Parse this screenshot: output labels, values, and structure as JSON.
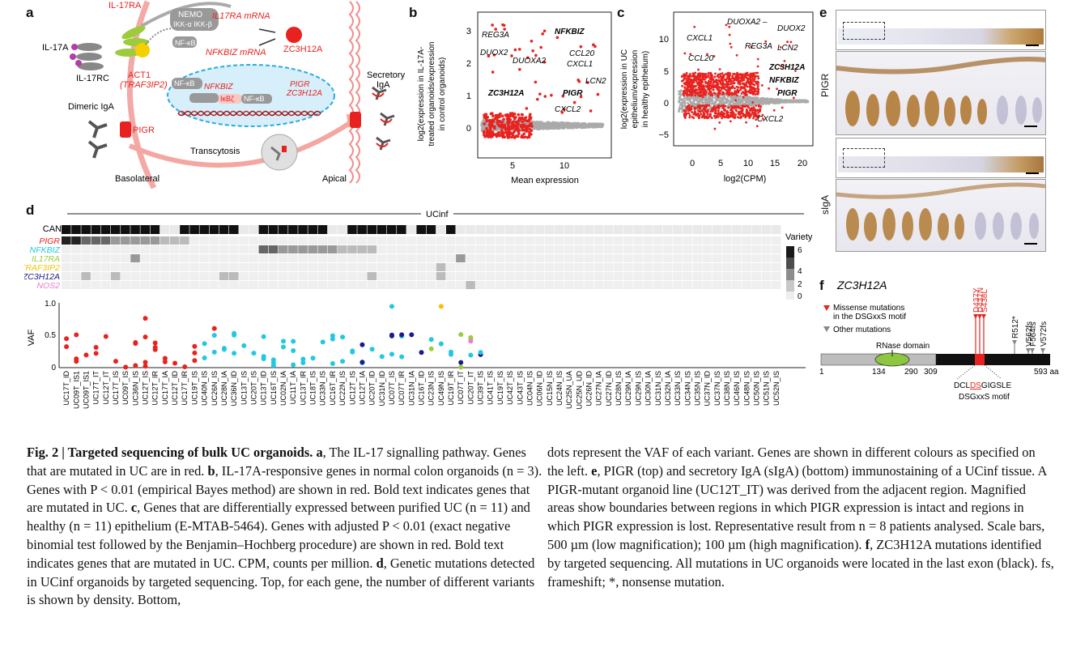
{
  "panel_letters": {
    "a": "a",
    "b": "b",
    "c": "c",
    "d": "d",
    "e": "e",
    "f": "f"
  },
  "panel_a": {
    "il17ra": "IL-17RA",
    "il17a": "IL-17A",
    "il17rc": "IL-17RC",
    "act1": "ACT1",
    "traf3ip2": "(TRAF3IP2)",
    "nemo": "NEMO",
    "ikk": "IKK-α IKK-β",
    "nfkb1": "NF-κB",
    "nfkb2": "NF-κB",
    "nfkb3": "NF-κB",
    "il17ra_mrna": "IL17RA mRNA",
    "nfkbiz_mrna": "NFKBIZ mRNA",
    "zc3h12a": "ZC3H12A",
    "nfkbiz": "NFKBIZ",
    "ikbz": "IκBζ",
    "pigr_g": "PIGR",
    "zc3h12a_g": "ZC3H12A",
    "dimeric": "Dimeric IgA",
    "pigr": "PIGR",
    "transcytosis": "Transcytosis",
    "basolateral": "Basolateral",
    "apical": "Apical",
    "secretory": "Secretory",
    "iga": "IgA"
  },
  "panel_b": {
    "ylabel": [
      "log2(expression in IL-17A-",
      "treated organoids/expression",
      "in control organoids)"
    ],
    "xlabel": "Mean expression",
    "yticks": [
      "0",
      "1",
      "2",
      "3"
    ],
    "xticks": [
      "5",
      "10"
    ],
    "genes": {
      "reg3a": "REG3A",
      "nfkbiz": "NFKBIZ",
      "duox2": "DUOX2",
      "duoxa2": "DUOXA2",
      "ccl20": "CCL20",
      "cxcl1": "CXCL1",
      "lcn2": "LCN2",
      "pigr": "PIGR",
      "zc3h12a": "ZC3H12A",
      "cxcl2": "CXCL2"
    }
  },
  "panel_c": {
    "ylabel": [
      "log2(expression in UC",
      "epithelium/expression",
      "in healthy epithelium)"
    ],
    "xlabel": "log2(CPM)",
    "yticks": [
      "10",
      "5",
      "0",
      "−5"
    ],
    "xticks": [
      "0",
      "5",
      "10",
      "15",
      "20"
    ],
    "genes": {
      "duoxa2": "DUOXA2 –",
      "duox2": "DUOX2",
      "cxcl1": "CXCL1",
      "reg3a": "REG3A",
      "lcn2": "LCN2",
      "ccl20": "CCL20",
      "zc3h12a": "ZC3H12A",
      "nfkbiz": "NFKBIZ",
      "pigr": "PIGR",
      "cxcl2": "CXCL2"
    }
  },
  "panel_d": {
    "ucinf": "UCinf",
    "can": "CAN",
    "genes": [
      "PIGR",
      "NFKBIZ",
      "IL17RA",
      "TRAF3IP2",
      "ZC3H12A",
      "NOS2"
    ],
    "gene_colors": [
      "#e8231f",
      "#22c8e0",
      "#9ccc3c",
      "#f5c000",
      "#1a1a8c",
      "#f07ad0"
    ],
    "variety_label": "Variety",
    "variety_ticks": [
      "6",
      "4",
      "2",
      "0"
    ],
    "vaf_label": "VAF",
    "vaf_ticks": [
      "1.0",
      "0.5",
      "0"
    ],
    "samples": [
      "UC17T_ID",
      "UC09T_IS1",
      "UC09T_IS1",
      "UC17T_IT",
      "UC12T_IT",
      "UC17T_IS",
      "UC09T_IS",
      "UC36N_IS",
      "UC12T_IS",
      "UC12T_IR",
      "UC17T_IA",
      "UC12T_ID",
      "UC17T_IR",
      "UC19T_IS",
      "UC40N_IS",
      "UC26N_IS",
      "UC28N_IA",
      "UC36N_ID",
      "UC13T_IS",
      "UC20T_IS",
      "UC13T_ID",
      "UC16T_IS",
      "UC02N_IA",
      "UC11T_IA",
      "UC13T_IR",
      "UC18T_IS",
      "UC33N_IS",
      "UC16T_IR",
      "UC22N_IS",
      "UC12T_IS",
      "UC12T_IA",
      "UC20T_ID",
      "UC31N_ID",
      "UC07T_IS",
      "UC07T_IR",
      "UC31N_IA",
      "UC16T_ID",
      "UC23N_IS",
      "UC49N_IS",
      "UC19T_IR",
      "UC07T_IT",
      "UC20T_IT",
      "UC39T_IS",
      "UC41T_IS",
      "UC19T_IS",
      "UC42T_IS",
      "UC43T_IS",
      "UC04N_IS",
      "UC06N_ID",
      "UC15N_IS",
      "UC24N_IS",
      "UC25N_UA",
      "UC25N_UD",
      "UC26N_ID",
      "UC27N_IA",
      "UC27N_ID",
      "UC28N_IS",
      "UC29N_IA",
      "UC29N_IS",
      "UC30N_IA",
      "UC31N_IS",
      "UC32N_IA",
      "UC33N_IS",
      "UC34N_IS",
      "UC35N_IS",
      "UC37N_ID",
      "UC37N_IS",
      "UC38N_IS",
      "UC46N_IS",
      "UC48N_IS",
      "UC50N_IS",
      "UC51N_IS",
      "UC52N_IS"
    ]
  },
  "panel_e": {
    "pigr": "PIGR",
    "siga": "sIgA"
  },
  "panel_f": {
    "title": "ZC3H12A",
    "legend_missense": "Missense mutations",
    "legend_missense2": "in the DSGxxS motif",
    "legend_other": "Other mutations",
    "rnase": "RNase domain",
    "pos": {
      "p1": "1",
      "p134": "134",
      "p290": "290",
      "p309": "309",
      "p593": "593 aa"
    },
    "motif_seq_a": "DCL",
    "motif_seq_b": "DS",
    "motif_seq_c": "GIGSLE",
    "motif_label": "DSGxxS motif",
    "mutations": [
      "D437Y",
      "D437N",
      "S438L",
      "R512*",
      "V562fs",
      "F564fs",
      "V572fs"
    ]
  },
  "caption": {
    "fig": "Fig. 2 | Targeted sequencing of bulk UC organoids.",
    "a_letter": "a",
    "a_text": ", The IL-17 signalling pathway. Genes that are mutated in UC are in red.",
    "b_letter": "b",
    "b_text": ", IL-17A-responsive genes in normal colon organoids (n = 3). Genes with P < 0.01 (empirical Bayes method) are shown in red. Bold text indicates genes that are mutated in UC.",
    "c_letter": "c",
    "c_text": ", Genes that are differentially expressed between purified UC (n = 11) and healthy (n = 11) epithelium (E-MTAB-5464). Genes with adjusted P < 0.01 (exact negative binomial test followed by the Benjamin–Hochberg procedure) are shown in red. Bold text indicates genes that are mutated in UC. CPM, counts per million.",
    "d_letter": "d",
    "d_text": ", Genetic mutations detected in UCinf organoids by targeted sequencing. Top, for each gene, the number of different variants is shown by density. Bottom,",
    "right_1": "dots represent the VAF of each variant. Genes are shown in different colours as specified on the left.",
    "e_letter": "e",
    "right_e": ", PIGR (top) and secretory IgA (sIgA) (bottom) immunostaining of a UCinf tissue. A PIGR-mutant organoid line (UC12T_IT) was derived from the adjacent region. Magnified areas show boundaries between regions in which PIGR expression is intact and regions in which PIGR expression is lost. Representative result from n = 8 patients analysed. Scale bars, 500 µm (low magnification); 100 µm (high magnification).",
    "f_letter": "f",
    "right_f": ", ZC3H12A mutations identified by targeted sequencing. All mutations in UC organoids were located in the last exon (black). fs, frameshift; *, nonsense mutation."
  }
}
